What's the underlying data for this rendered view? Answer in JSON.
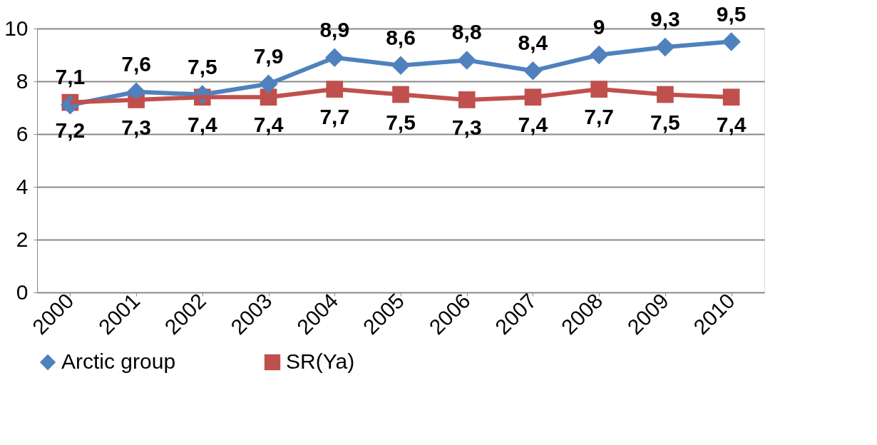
{
  "chart_data": {
    "type": "line",
    "categories": [
      "2000",
      "2001",
      "2002",
      "2003",
      "2004",
      "2005",
      "2006",
      "2007",
      "2008",
      "2009",
      "2010"
    ],
    "series": [
      {
        "name": "Arctic group",
        "color": "#4f81bd",
        "marker": "diamond",
        "values": [
          7.1,
          7.6,
          7.5,
          7.9,
          8.9,
          8.6,
          8.8,
          8.4,
          9,
          9.3,
          9.5
        ],
        "value_labels": [
          "7,1",
          "7,6",
          "7,5",
          "7,9",
          "8,9",
          "8,6",
          "8,8",
          "8,4",
          "9",
          "9,3",
          "9,5"
        ]
      },
      {
        "name": "SR(Ya)",
        "color": "#c0504d",
        "marker": "square",
        "values": [
          7.2,
          7.3,
          7.4,
          7.4,
          7.7,
          7.5,
          7.3,
          7.4,
          7.7,
          7.5,
          7.4
        ],
        "value_labels": [
          "7,2",
          "7,3",
          "7,4",
          "7,4",
          "7,7",
          "7,5",
          "7,3",
          "7,4",
          "7,7",
          "7,5",
          "7,4"
        ]
      }
    ],
    "ylim": [
      0,
      10
    ],
    "yticks": [
      0,
      2,
      4,
      6,
      8,
      10
    ],
    "grid": "y",
    "legend": "bottom"
  }
}
